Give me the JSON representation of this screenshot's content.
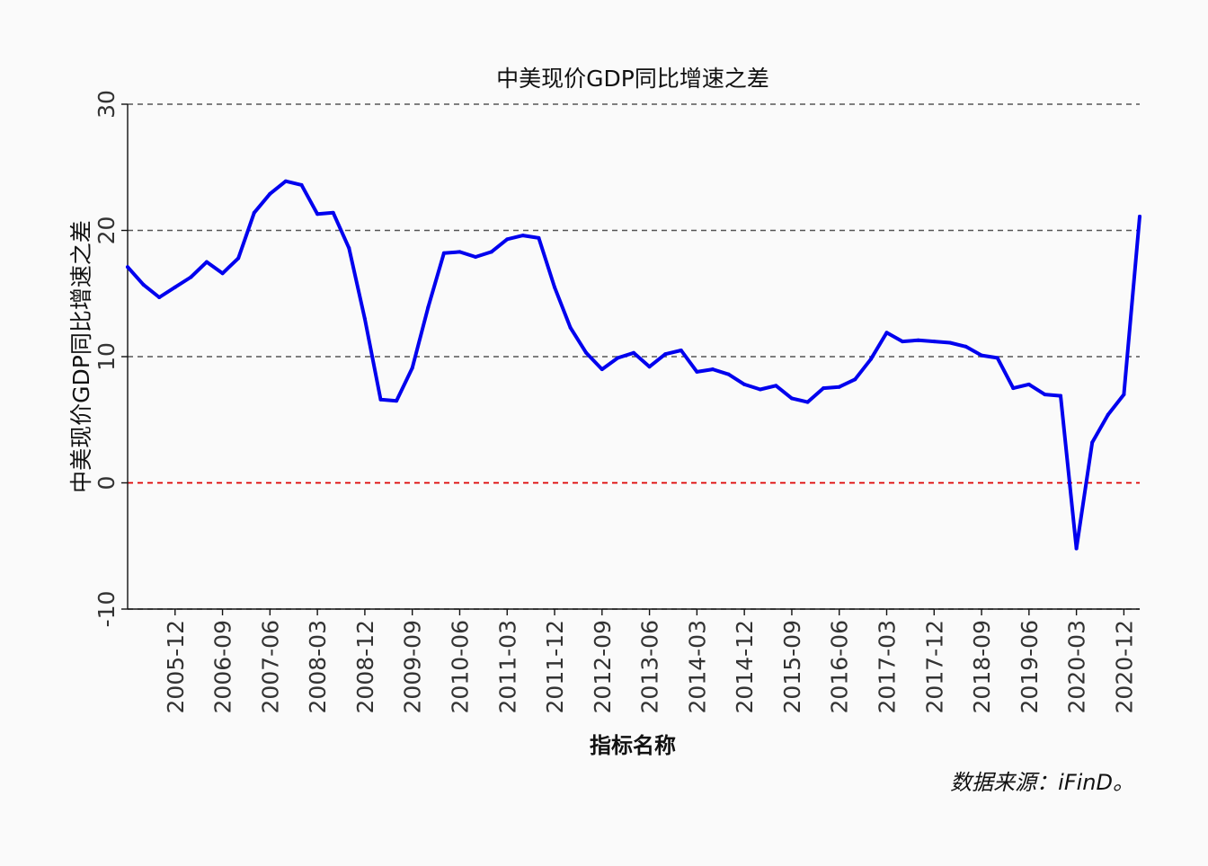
{
  "chart_data": {
    "type": "line",
    "title": "中美现价GDP同比增速之差",
    "xlabel": "指标名称",
    "ylabel": "中美现价GDP同比增速之差",
    "source_note": "数据来源：iFinD。",
    "ylim": [
      -10,
      30
    ],
    "yticks": [
      -10,
      0,
      10,
      20,
      30
    ],
    "xticks": [
      "2005-12",
      "2006-09",
      "2007-06",
      "2008-03",
      "2008-12",
      "2009-09",
      "2010-06",
      "2011-03",
      "2011-12",
      "2012-09",
      "2013-06",
      "2014-03",
      "2014-12",
      "2015-09",
      "2016-06",
      "2017-03",
      "2017-12",
      "2018-09",
      "2019-06",
      "2020-03",
      "2020-12"
    ],
    "grid": "horizontal dashed",
    "reference_line": {
      "value": 0,
      "color": "#dd0000"
    },
    "series": [
      {
        "color": "#0000ee",
        "x": [
          "2005-03",
          "2005-06",
          "2005-09",
          "2005-12",
          "2006-03",
          "2006-06",
          "2006-09",
          "2006-12",
          "2007-03",
          "2007-06",
          "2007-09",
          "2007-12",
          "2008-03",
          "2008-06",
          "2008-09",
          "2008-12",
          "2009-03",
          "2009-06",
          "2009-09",
          "2009-12",
          "2010-03",
          "2010-06",
          "2010-09",
          "2010-12",
          "2011-03",
          "2011-06",
          "2011-09",
          "2011-12",
          "2012-03",
          "2012-06",
          "2012-09",
          "2012-12",
          "2013-03",
          "2013-06",
          "2013-09",
          "2013-12",
          "2014-03",
          "2014-06",
          "2014-09",
          "2014-12",
          "2015-03",
          "2015-06",
          "2015-09",
          "2015-12",
          "2016-03",
          "2016-06",
          "2016-09",
          "2016-12",
          "2017-03",
          "2017-06",
          "2017-09",
          "2017-12",
          "2018-03",
          "2018-06",
          "2018-09",
          "2018-12",
          "2019-03",
          "2019-06",
          "2019-09",
          "2019-12",
          "2020-03",
          "2020-06",
          "2020-09",
          "2020-12",
          "2021-03"
        ],
        "values": [
          17.1,
          15.7,
          14.7,
          15.5,
          16.3,
          17.5,
          16.6,
          17.8,
          21.4,
          22.9,
          23.9,
          23.6,
          21.3,
          21.4,
          18.6,
          13.0,
          6.6,
          6.5,
          9.1,
          13.9,
          18.2,
          18.3,
          17.9,
          18.3,
          19.3,
          19.6,
          19.4,
          15.5,
          12.3,
          10.3,
          9.0,
          9.9,
          10.3,
          9.2,
          10.2,
          10.5,
          8.8,
          9.0,
          8.6,
          7.8,
          7.4,
          7.7,
          6.7,
          6.4,
          7.5,
          7.6,
          8.2,
          9.8,
          11.9,
          11.2,
          11.3,
          11.2,
          11.1,
          10.8,
          10.1,
          9.9,
          7.5,
          7.8,
          7.0,
          6.9,
          -5.2,
          3.2,
          5.4,
          7.0,
          21.1
        ]
      }
    ]
  },
  "colors": {
    "background": "#fafafa",
    "line": "#0000ee",
    "zero_line": "#dd0000",
    "grid": "#555555"
  }
}
